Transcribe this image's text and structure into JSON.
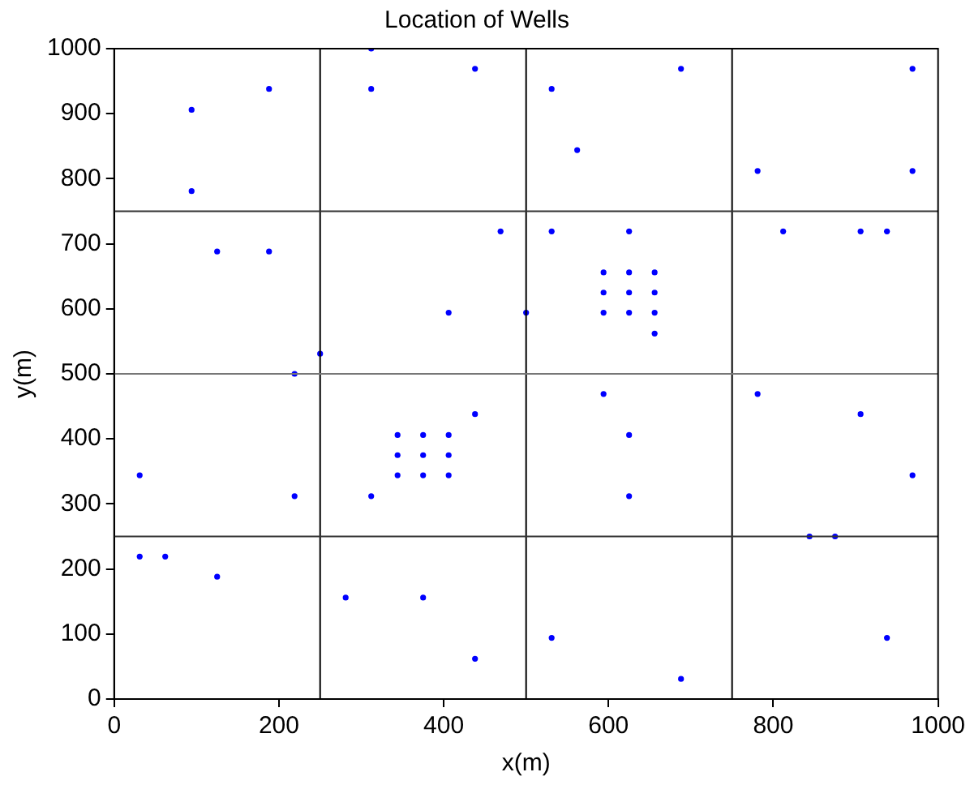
{
  "chart_data": {
    "type": "scatter",
    "title": "Location of Wells",
    "xlabel": "x(m)",
    "ylabel": "y(m)",
    "xlim": [
      0,
      1000
    ],
    "ylim": [
      0,
      1000
    ],
    "xticks": [
      0,
      200,
      400,
      600,
      800,
      1000
    ],
    "yticks": [
      0,
      100,
      200,
      300,
      400,
      500,
      600,
      700,
      800,
      900,
      1000
    ],
    "grid": false,
    "legend": false,
    "marker": "circle",
    "series": [
      {
        "color": "#0000ff",
        "x": [
          94,
          94,
          188,
          125,
          188,
          219,
          250,
          312,
          312,
          438,
          406,
          469,
          500,
          688,
          531,
          562,
          781,
          969,
          969,
          531,
          625,
          812,
          906,
          938,
          594,
          625,
          656,
          594,
          625,
          656,
          594,
          625,
          656,
          656,
          594,
          781,
          31,
          219,
          312,
          31,
          62,
          125,
          281,
          375,
          438,
          438,
          344,
          375,
          406,
          344,
          375,
          406,
          344,
          375,
          406,
          625,
          625,
          906,
          969,
          844,
          875,
          531,
          688,
          938
        ],
        "values": [
          906,
          781,
          938,
          688,
          688,
          500,
          531,
          1000,
          938,
          969,
          594,
          719,
          594,
          969,
          938,
          844,
          812,
          969,
          812,
          719,
          719,
          719,
          719,
          719,
          656,
          656,
          656,
          625,
          625,
          625,
          594,
          594,
          594,
          562,
          469,
          469,
          344,
          312,
          312,
          219,
          219,
          188,
          156,
          156,
          62,
          438,
          406,
          406,
          406,
          375,
          375,
          375,
          344,
          344,
          344,
          406,
          312,
          438,
          344,
          250,
          250,
          94,
          31,
          94
        ]
      }
    ],
    "ref_lines": [
      {
        "axis": "x",
        "value": 250,
        "color": "#000000"
      },
      {
        "axis": "x",
        "value": 500,
        "color": "#000000"
      },
      {
        "axis": "x",
        "value": 750,
        "color": "#000000"
      },
      {
        "axis": "y",
        "value": 250,
        "color": "#333333"
      },
      {
        "axis": "y",
        "value": 500,
        "color": "#777777"
      },
      {
        "axis": "y",
        "value": 750,
        "color": "#333333"
      }
    ]
  }
}
